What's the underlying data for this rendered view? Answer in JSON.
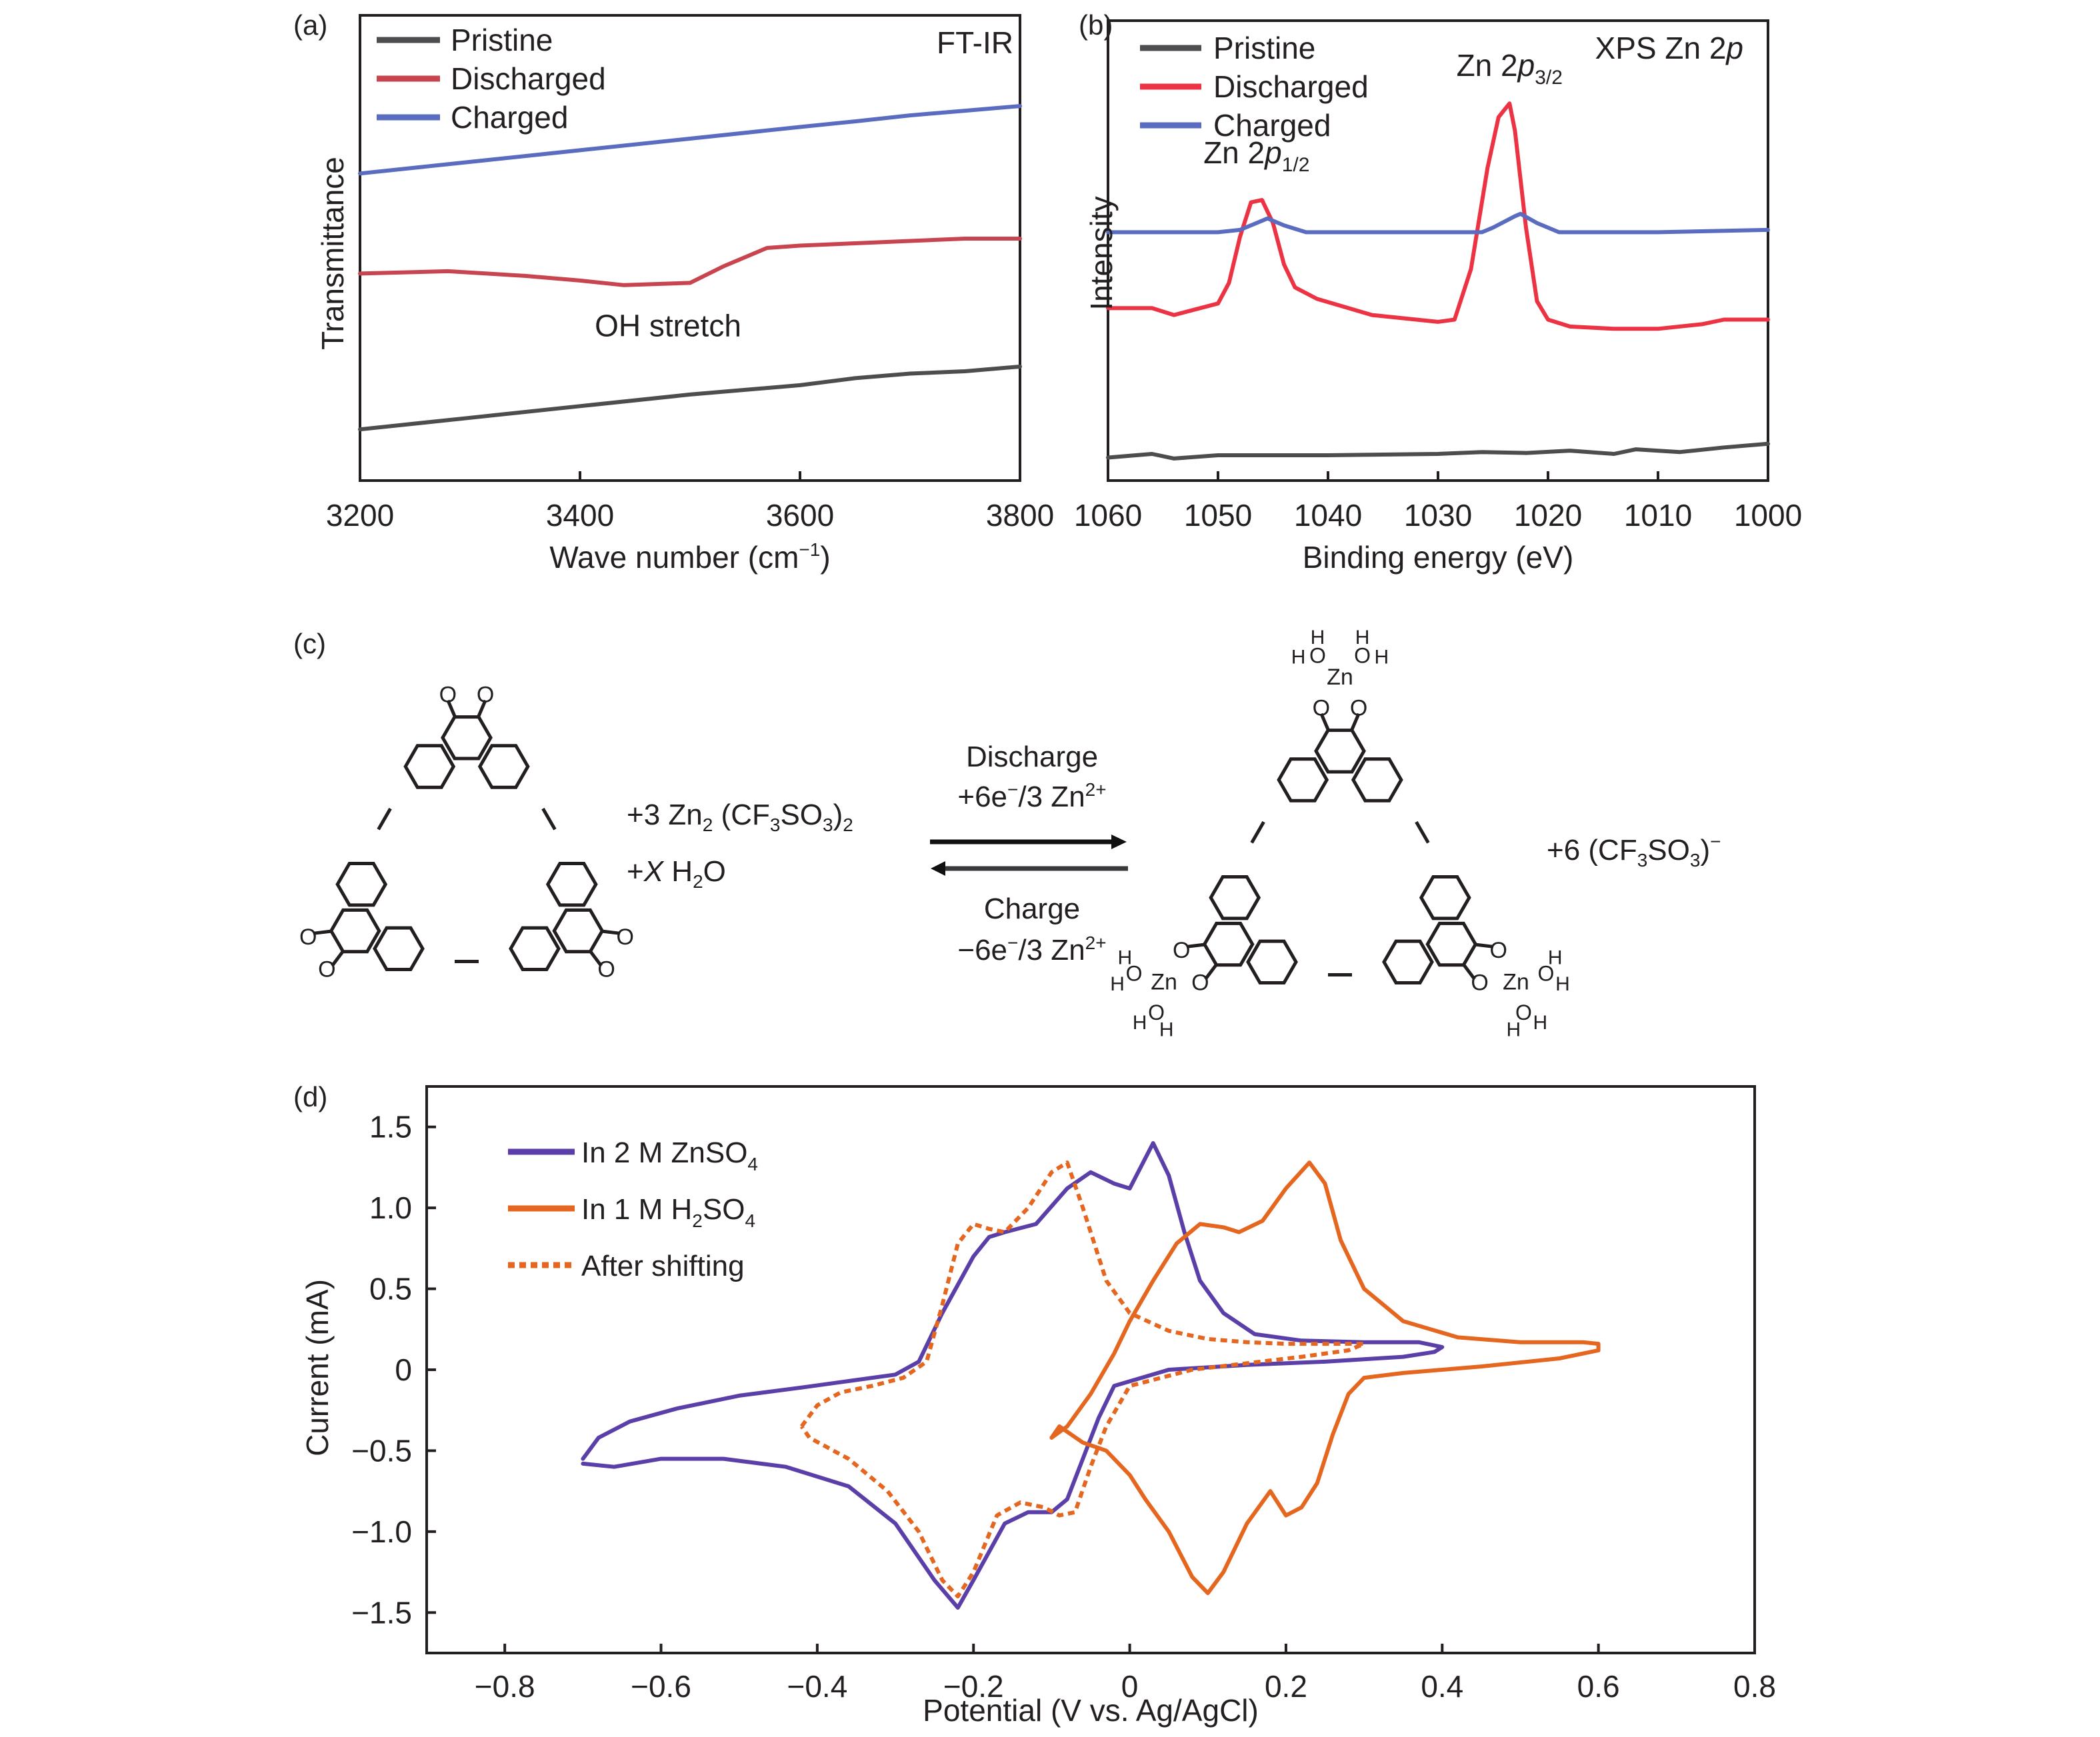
{
  "panels": {
    "a": {
      "label": "(a)"
    },
    "b": {
      "label": "(b)"
    },
    "c": {
      "label": "(c)"
    },
    "d": {
      "label": "(d)"
    }
  },
  "colors": {
    "pristine": "#4d4d4f",
    "discharged_ir": "#c8454f",
    "discharged_xps": "#ec3344",
    "charged": "#5a6cc0",
    "zn_so4": "#5b3fa8",
    "h2so4": "#e4661f",
    "axis": "#231f20"
  },
  "scheme": {
    "reactant_terms": [
      "+3 Zn",
      "2",
      " (CF",
      "3",
      "SO",
      "3",
      ")",
      "2"
    ],
    "water_term": {
      "plus": "+",
      "x": "X",
      "h": " H",
      "sub": "2",
      "o": "O"
    },
    "forward_label": "Discharge",
    "forward_sub": {
      "pre": "+6e",
      "sup1": "−",
      "mid": "/3 Zn",
      "sup2": "2+"
    },
    "reverse_label": "Charge",
    "reverse_sub": {
      "pre": "−6e",
      "sup1": "−",
      "mid": "/3 Zn",
      "sup2": "2+"
    },
    "product_term": {
      "pre": "+6 (CF",
      "sub1": "3",
      "mid": "SO",
      "sub2": "3",
      "post": ")",
      "sup": "−"
    },
    "atom_labels": {
      "O": "O",
      "Zn": "Zn",
      "H": "H"
    }
  },
  "chart_data": [
    {
      "id": "a",
      "type": "line",
      "title": "FT-IR",
      "xlabel": "Wave number (cm⁻¹)",
      "xlabel_parts": {
        "main": "Wave number (cm",
        "sup": "−1",
        "close": ")"
      },
      "ylabel": "Transmittance",
      "xlim": [
        3200,
        3800
      ],
      "ylim": [
        0,
        10
      ],
      "xticks": [
        3200,
        3400,
        3600,
        3800
      ],
      "xtick_labels": [
        "3200",
        "3400",
        "3600",
        "3800"
      ],
      "yticks": [],
      "grid": false,
      "legend": "top-left",
      "annotations": [
        {
          "text": "OH stretch",
          "x": 3480,
          "y": 3.1
        }
      ],
      "series": [
        {
          "name": "Pristine",
          "color_key": "pristine",
          "x": [
            3200,
            3300,
            3400,
            3500,
            3600,
            3650,
            3700,
            3750,
            3800
          ],
          "y": [
            1.1,
            1.35,
            1.6,
            1.85,
            2.05,
            2.2,
            2.3,
            2.35,
            2.45
          ]
        },
        {
          "name": "Discharged",
          "color_key": "discharged_ir",
          "x": [
            3200,
            3280,
            3350,
            3400,
            3440,
            3500,
            3530,
            3570,
            3600,
            3650,
            3700,
            3750,
            3800
          ],
          "y": [
            4.45,
            4.5,
            4.4,
            4.3,
            4.2,
            4.25,
            4.6,
            5.0,
            5.05,
            5.1,
            5.15,
            5.2,
            5.2
          ]
        },
        {
          "name": "Charged",
          "color_key": "charged",
          "x": [
            3200,
            3300,
            3400,
            3500,
            3600,
            3650,
            3700,
            3750,
            3800
          ],
          "y": [
            6.6,
            6.85,
            7.1,
            7.35,
            7.6,
            7.72,
            7.85,
            7.95,
            8.05
          ]
        }
      ]
    },
    {
      "id": "b",
      "type": "line",
      "title": "XPS Zn 2p",
      "title_parts": {
        "main": "XPS Zn 2",
        "italic": "p"
      },
      "xlabel": "Binding energy (eV)",
      "ylabel": "Intensity",
      "xlim": [
        1060,
        1000
      ],
      "ylim": [
        0,
        10
      ],
      "xticks": [
        1060,
        1050,
        1040,
        1030,
        1020,
        1010,
        1000
      ],
      "xtick_labels": [
        "1060",
        "1050",
        "1040",
        "1030",
        "1020",
        "1010",
        "1000"
      ],
      "yticks": [],
      "grid": false,
      "legend": "top-left",
      "annotations": [
        {
          "text": "Zn 2p1/2",
          "main": "Zn 2",
          "italic": "p",
          "sub": "1/2",
          "x": 1046.5,
          "y": 6.9
        },
        {
          "text": "Zn 2p3/2",
          "main": "Zn 2",
          "italic": "p",
          "sub": "3/2",
          "x": 1023.5,
          "y": 8.8
        }
      ],
      "series": [
        {
          "name": "Pristine",
          "color_key": "pristine",
          "x": [
            1060,
            1056,
            1054,
            1050,
            1040,
            1030,
            1026,
            1022,
            1018,
            1014,
            1012,
            1008,
            1004,
            1000
          ],
          "y": [
            0.5,
            0.58,
            0.48,
            0.55,
            0.55,
            0.58,
            0.62,
            0.6,
            0.65,
            0.58,
            0.68,
            0.62,
            0.72,
            0.8
          ]
        },
        {
          "name": "Discharged",
          "color_key": "discharged_xps",
          "x": [
            1060,
            1056,
            1054,
            1050,
            1049,
            1048,
            1047,
            1046,
            1045,
            1044,
            1043,
            1041,
            1036,
            1030,
            1028.5,
            1027,
            1025.5,
            1024.5,
            1024,
            1023.5,
            1023,
            1022,
            1021,
            1020,
            1018,
            1014,
            1010,
            1006,
            1004,
            1000
          ],
          "y": [
            3.75,
            3.75,
            3.6,
            3.85,
            4.3,
            5.3,
            6.05,
            6.1,
            5.6,
            4.7,
            4.2,
            3.95,
            3.6,
            3.45,
            3.5,
            4.6,
            6.8,
            7.9,
            8.05,
            8.2,
            7.6,
            5.5,
            3.9,
            3.5,
            3.35,
            3.3,
            3.3,
            3.4,
            3.5,
            3.5
          ]
        },
        {
          "name": "Charged",
          "color_key": "charged",
          "x": [
            1060,
            1050,
            1048,
            1046.5,
            1045.5,
            1044,
            1042,
            1030,
            1026,
            1025,
            1023,
            1022.5,
            1021,
            1019,
            1010,
            1000
          ],
          "y": [
            5.4,
            5.4,
            5.45,
            5.6,
            5.7,
            5.55,
            5.4,
            5.4,
            5.4,
            5.5,
            5.75,
            5.8,
            5.6,
            5.4,
            5.4,
            5.45
          ]
        }
      ]
    },
    {
      "id": "d",
      "type": "line",
      "title": "",
      "xlabel": "Potential (V vs. Ag/AgCl)",
      "ylabel": "Current (mA)",
      "xlim": [
        -0.9,
        0.8
      ],
      "ylim": [
        -1.75,
        1.75
      ],
      "xticks": [
        -0.8,
        -0.6,
        -0.4,
        -0.2,
        0,
        0.2,
        0.4,
        0.6,
        0.8
      ],
      "xtick_labels": [
        "−0.8",
        "−0.6",
        "−0.4",
        "−0.2",
        "0",
        "0.2",
        "0.4",
        "0.6",
        "0.8"
      ],
      "yticks": [
        1.5,
        1.0,
        0.5,
        0,
        -0.5,
        -1.0,
        -1.5
      ],
      "ytick_labels": [
        "1.5",
        "1.0",
        "0.5",
        "0",
        "−0.5",
        "−1.0",
        "−1.5"
      ],
      "grid": false,
      "legend": "top-left",
      "legend_entries": [
        {
          "main": "In 2 M ZnSO",
          "sub": "4",
          "series": 0
        },
        {
          "main": "In 1 M H",
          "sub": "2",
          "main2": "SO",
          "sub2": "4",
          "series": 1
        },
        {
          "main": "After shifting",
          "series": 2
        }
      ],
      "series": [
        {
          "name": "In 2 M ZnSO4",
          "color_key": "zn_so4",
          "style": "solid",
          "x": [
            -0.7,
            -0.68,
            -0.64,
            -0.58,
            -0.5,
            -0.42,
            -0.36,
            -0.3,
            -0.27,
            -0.24,
            -0.2,
            -0.18,
            -0.16,
            -0.12,
            -0.08,
            -0.05,
            -0.02,
            0.0,
            0.03,
            0.05,
            0.07,
            0.09,
            0.12,
            0.16,
            0.22,
            0.3,
            0.37,
            0.4,
            0.39,
            0.35,
            0.25,
            0.15,
            0.05,
            -0.02,
            -0.04,
            -0.06,
            -0.08,
            -0.1,
            -0.13,
            -0.16,
            -0.2,
            -0.22,
            -0.25,
            -0.3,
            -0.36,
            -0.44,
            -0.52,
            -0.6,
            -0.66,
            -0.7
          ],
          "y": [
            -0.55,
            -0.42,
            -0.32,
            -0.24,
            -0.16,
            -0.11,
            -0.07,
            -0.03,
            0.05,
            0.35,
            0.7,
            0.82,
            0.85,
            0.9,
            1.12,
            1.22,
            1.15,
            1.12,
            1.4,
            1.2,
            0.85,
            0.55,
            0.35,
            0.22,
            0.18,
            0.17,
            0.17,
            0.14,
            0.11,
            0.08,
            0.05,
            0.03,
            0.0,
            -0.1,
            -0.3,
            -0.55,
            -0.8,
            -0.88,
            -0.88,
            -0.95,
            -1.3,
            -1.47,
            -1.3,
            -0.95,
            -0.72,
            -0.6,
            -0.55,
            -0.55,
            -0.6,
            -0.58
          ]
        },
        {
          "name": "In 1 M H2SO4",
          "color_key": "h2so4",
          "style": "solid",
          "x": [
            -0.1,
            -0.08,
            -0.05,
            -0.02,
            0.0,
            0.03,
            0.06,
            0.09,
            0.12,
            0.14,
            0.17,
            0.2,
            0.23,
            0.25,
            0.27,
            0.3,
            0.35,
            0.42,
            0.5,
            0.58,
            0.6,
            0.6,
            0.55,
            0.45,
            0.35,
            0.3,
            0.28,
            0.26,
            0.24,
            0.22,
            0.2,
            0.18,
            0.15,
            0.12,
            0.1,
            0.08,
            0.05,
            0.02,
            0.0,
            -0.03,
            -0.06,
            -0.09,
            -0.1
          ],
          "y": [
            -0.42,
            -0.35,
            -0.15,
            0.1,
            0.3,
            0.55,
            0.78,
            0.9,
            0.88,
            0.85,
            0.92,
            1.12,
            1.28,
            1.15,
            0.8,
            0.5,
            0.3,
            0.2,
            0.17,
            0.17,
            0.16,
            0.12,
            0.07,
            0.02,
            -0.02,
            -0.05,
            -0.15,
            -0.4,
            -0.7,
            -0.85,
            -0.9,
            -0.75,
            -0.95,
            -1.25,
            -1.38,
            -1.28,
            -1.0,
            -0.8,
            -0.65,
            -0.5,
            -0.45,
            -0.35,
            -0.42
          ]
        },
        {
          "name": "After shifting",
          "color_key": "h2so4",
          "style": "dotted",
          "x": [
            -0.42,
            -0.4,
            -0.37,
            -0.33,
            -0.29,
            -0.26,
            -0.24,
            -0.22,
            -0.2,
            -0.18,
            -0.16,
            -0.13,
            -0.1,
            -0.08,
            -0.06,
            -0.03,
            0.0,
            0.05,
            0.1,
            0.15,
            0.2,
            0.25,
            0.3,
            0.28,
            0.22,
            0.15,
            0.08,
            0.0,
            -0.03,
            -0.05,
            -0.07,
            -0.09,
            -0.11,
            -0.14,
            -0.17,
            -0.2,
            -0.22,
            -0.24,
            -0.27,
            -0.31,
            -0.36,
            -0.41,
            -0.42
          ],
          "y": [
            -0.35,
            -0.22,
            -0.14,
            -0.1,
            -0.05,
            0.05,
            0.4,
            0.78,
            0.9,
            0.87,
            0.85,
            1.0,
            1.22,
            1.28,
            1.0,
            0.55,
            0.35,
            0.24,
            0.19,
            0.17,
            0.16,
            0.16,
            0.16,
            0.12,
            0.08,
            0.04,
            0.0,
            -0.1,
            -0.35,
            -0.6,
            -0.88,
            -0.9,
            -0.85,
            -0.82,
            -0.9,
            -1.25,
            -1.4,
            -1.3,
            -1.0,
            -0.75,
            -0.55,
            -0.42,
            -0.35
          ]
        }
      ]
    }
  ]
}
